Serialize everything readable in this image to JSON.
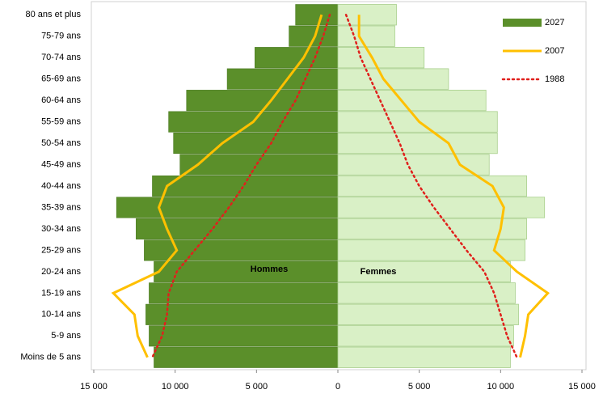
{
  "chart_data": {
    "type": "pyramid",
    "categories": [
      "80 ans et plus",
      "75-79 ans",
      "70-74 ans",
      "65-69 ans",
      "60-64 ans",
      "55-59 ans",
      "50-54 ans",
      "45-49 ans",
      "40-44 ans",
      "35-39 ans",
      "30-34 ans",
      "25-29 ans",
      "20-24 ans",
      "15-19 ans",
      "10-14 ans",
      "5-9 ans",
      "Moins de 5 ans"
    ],
    "men_label": "Hommes",
    "women_label": "Femmes",
    "series": [
      {
        "name": "2027",
        "kind": "bar",
        "color": "#5b8f2a",
        "women_color": "#d9f0c6",
        "men": [
          -2600,
          -3000,
          -5100,
          -6800,
          -9300,
          -10400,
          -10100,
          -9700,
          -11400,
          -13600,
          -12400,
          -11900,
          -11300,
          -11600,
          -11800,
          -11600,
          -11300
        ],
        "women": [
          3600,
          3500,
          5300,
          6800,
          9100,
          9800,
          9800,
          9300,
          11600,
          12700,
          11600,
          11500,
          10600,
          10900,
          11100,
          10800,
          10600
        ]
      },
      {
        "name": "2007",
        "kind": "line",
        "color": "#ffc000",
        "men": [
          -1000,
          -1400,
          -2100,
          -3100,
          -4100,
          -5200,
          -7100,
          -8600,
          -10500,
          -11000,
          -10500,
          -9900,
          -11000,
          -13800,
          -12500,
          -12300,
          -11700
        ],
        "women": [
          1300,
          1300,
          2100,
          2800,
          3900,
          5000,
          6800,
          7500,
          9500,
          10200,
          10000,
          9600,
          11000,
          12900,
          11700,
          11500,
          11200
        ]
      },
      {
        "name": "1988",
        "kind": "dotted",
        "color": "#e0201c",
        "men": [
          -500,
          -900,
          -1400,
          -2000,
          -2600,
          -3400,
          -4100,
          -5000,
          -5800,
          -6700,
          -7700,
          -8800,
          -9900,
          -10400,
          -10500,
          -10800,
          -11400
        ],
        "women": [
          500,
          1000,
          1400,
          2000,
          2600,
          3200,
          3800,
          4300,
          5000,
          5900,
          6900,
          7900,
          9000,
          9600,
          10000,
          10400,
          11000
        ]
      }
    ],
    "xlim": [
      -15000,
      15000
    ],
    "xticks": [
      {
        "value": -15000,
        "label": "15 000"
      },
      {
        "value": -10000,
        "label": "10 000"
      },
      {
        "value": -5000,
        "label": "5 000"
      },
      0,
      {
        "value": 5000,
        "label": "5 000"
      },
      {
        "value": 10000,
        "label": "10 000"
      },
      {
        "value": 15000,
        "label": "15 000"
      }
    ],
    "legend": "upper right"
  }
}
